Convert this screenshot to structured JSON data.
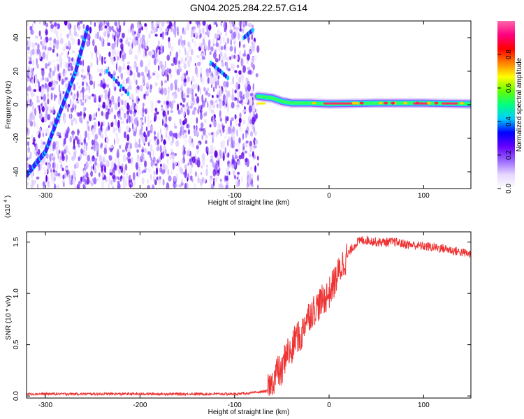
{
  "figure_title": "GN04.2025.284.22.57.G14",
  "chart_data": [
    {
      "type": "heatmap",
      "title": "GN04.2025.284.22.57.G14",
      "xlabel": "Height of straight line (km)",
      "ylabel": "Frequency (Hz)",
      "xlim": [
        -320,
        150
      ],
      "ylim": [
        -50,
        50
      ],
      "xticks": [
        -300,
        -200,
        -100,
        0,
        100
      ],
      "xtick_labels": [
        "-300",
        "-200",
        "-100",
        "0",
        "100"
      ],
      "yticks": [
        -40,
        -20,
        0,
        20,
        40
      ],
      "ytick_labels": [
        "-40",
        "-20",
        "0",
        "20",
        "40"
      ],
      "noise_region_x": [
        -320,
        -75
      ],
      "trace_points": [
        [
          -320,
          -42
        ],
        [
          -300,
          -28
        ],
        [
          -285,
          -5
        ],
        [
          -268,
          20
        ],
        [
          -255,
          47
        ]
      ],
      "carrier_points": [
        [
          -75,
          5
        ],
        [
          -60,
          4
        ],
        [
          -50,
          2
        ],
        [
          -40,
          1
        ],
        [
          -20,
          1
        ],
        [
          0,
          0.5
        ],
        [
          50,
          1
        ],
        [
          100,
          1
        ],
        [
          150,
          0.5
        ]
      ],
      "colorbar": {
        "label": "Normalized spectral amplitude",
        "range": [
          0,
          1
        ],
        "ticks": [
          0.0,
          0.2,
          0.4,
          0.6,
          0.8
        ],
        "tick_labels": [
          "0.0",
          "0.2",
          "0.4",
          "0.6",
          "0.8"
        ],
        "colors": [
          "#ffffff",
          "#e6d6ff",
          "#9966ff",
          "#6600ff",
          "#0000ff",
          "#00ccff",
          "#00ff80",
          "#66ff00",
          "#ffff00",
          "#ff8000",
          "#ff0000",
          "#ff0080",
          "#ff66aa"
        ]
      }
    },
    {
      "type": "line",
      "title": "",
      "xlabel": "Height of straight line (km)",
      "ylabel": "SNR (10 * v/v)",
      "multiplier_label": "(x10",
      "multiplier_exp": "4",
      "multiplier_close": ")",
      "xlim": [
        -320,
        150
      ],
      "ylim": [
        -0.02,
        1.6
      ],
      "xticks": [
        -300,
        -200,
        -100,
        0,
        100
      ],
      "xtick_labels": [
        "-300",
        "-200",
        "-100",
        "0",
        "100"
      ],
      "yticks": [
        0.0,
        0.5,
        1.0,
        1.5
      ],
      "ytick_labels": [
        "0.0",
        "0.5",
        "1.0",
        "1.5"
      ],
      "color": "#ee3333",
      "series": [
        {
          "name": "SNR",
          "x": [
            -320,
            -300,
            -250,
            -200,
            -150,
            -120,
            -100,
            -80,
            -65,
            -60,
            -55,
            -50,
            -45,
            -40,
            -35,
            -30,
            -25,
            -20,
            -15,
            -10,
            -5,
            0,
            5,
            10,
            15,
            20,
            25,
            30,
            35,
            40,
            50,
            60,
            70,
            80,
            90,
            100,
            110,
            120,
            130,
            140,
            150
          ],
          "y": [
            0.02,
            0.02,
            0.02,
            0.02,
            0.02,
            0.02,
            0.02,
            0.03,
            0.05,
            0.12,
            0.25,
            0.22,
            0.45,
            0.4,
            0.6,
            0.55,
            0.75,
            0.8,
            0.85,
            0.9,
            0.95,
            1.0,
            1.1,
            1.2,
            1.3,
            1.38,
            1.45,
            1.5,
            1.52,
            1.52,
            1.5,
            1.5,
            1.5,
            1.48,
            1.47,
            1.46,
            1.45,
            1.44,
            1.42,
            1.4,
            1.38
          ]
        }
      ]
    }
  ]
}
